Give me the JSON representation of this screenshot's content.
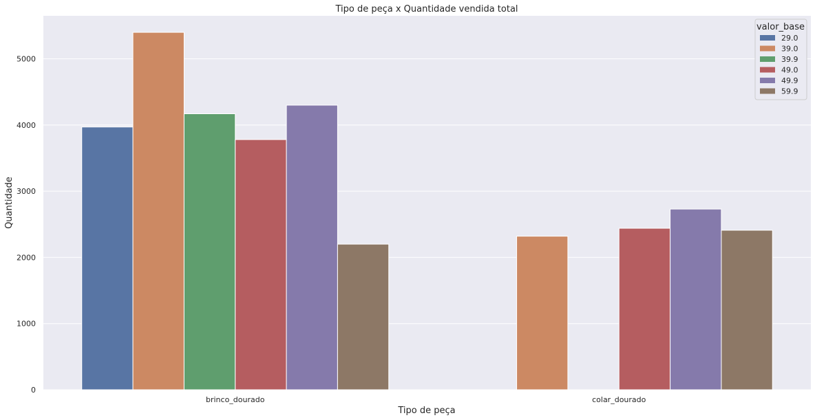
{
  "chart_data": {
    "type": "bar",
    "title": "Tipo de peça x Quantidade vendida total",
    "xlabel": "Tipo de peça",
    "ylabel": "Quantidade",
    "categories": [
      "brinco_dourado",
      "colar_dourado"
    ],
    "ylim": [
      0,
      5650
    ],
    "yticks": [
      0,
      1000,
      2000,
      3000,
      4000,
      5000
    ],
    "grid": true,
    "legend_title": "valor_base",
    "legend_position": "top-right",
    "series": [
      {
        "name": "29.0",
        "color": "#5875a4",
        "values": [
          3970,
          null
        ]
      },
      {
        "name": "39.0",
        "color": "#cc8963",
        "values": [
          5400,
          2320
        ]
      },
      {
        "name": "39.9",
        "color": "#5f9e6e",
        "values": [
          4170,
          null
        ]
      },
      {
        "name": "49.0",
        "color": "#b55d60",
        "values": [
          3780,
          2440
        ]
      },
      {
        "name": "49.9",
        "color": "#857aab",
        "values": [
          4300,
          2730
        ]
      },
      {
        "name": "59.9",
        "color": "#8d7866",
        "values": [
          2200,
          2410
        ]
      }
    ]
  }
}
